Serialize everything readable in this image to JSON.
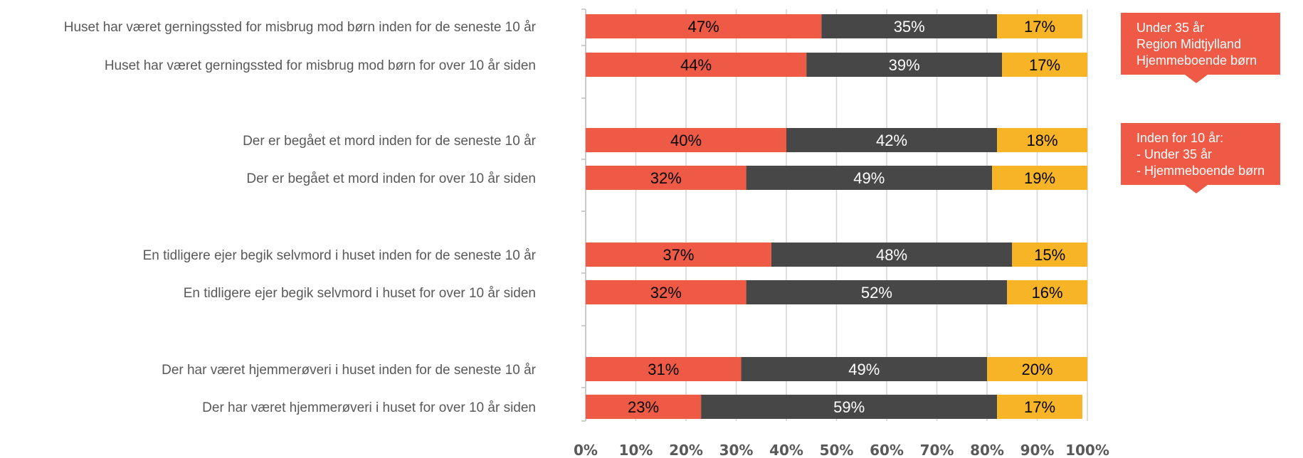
{
  "chart_data": {
    "type": "bar",
    "orientation": "horizontal",
    "stacked": "percent",
    "categories": [
      "Huset har været gerningssted for misbrug mod børn inden for de seneste 10 år",
      "Huset har været gerningssted for misbrug mod børn for over 10 år siden",
      "Der er begået et mord inden for de seneste 10 år",
      "Der er begået et mord inden for over 10 år siden",
      "En tidligere ejer begik selvmord i huset inden for de seneste 10 år",
      "En tidligere ejer begik selvmord i huset for over 10 år siden",
      "Der har været hjemmerøveri i huset inden for de seneste 10 år",
      "Der har været hjemmerøveri i huset for over 10 år siden"
    ],
    "groups": [
      [
        0,
        1
      ],
      [
        2,
        3
      ],
      [
        4,
        5
      ],
      [
        6,
        7
      ]
    ],
    "series": [
      {
        "color": "#ee5a45",
        "label_color": "#000000",
        "values": [
          47,
          44,
          40,
          32,
          37,
          32,
          31,
          23
        ]
      },
      {
        "color": "#474747",
        "label_color": "#ffffff",
        "values": [
          35,
          39,
          42,
          49,
          48,
          52,
          49,
          59
        ]
      },
      {
        "color": "#f8b427",
        "label_color": "#000000",
        "values": [
          17,
          17,
          18,
          19,
          15,
          16,
          20,
          17
        ]
      }
    ],
    "data_labels": [
      [
        "47%",
        "35%",
        "17%"
      ],
      [
        "44%",
        "39%",
        "17%"
      ],
      [
        "40%",
        "42%",
        "18%"
      ],
      [
        "32%",
        "49%",
        "19%"
      ],
      [
        "37%",
        "48%",
        "15%"
      ],
      [
        "32%",
        "52%",
        "16%"
      ],
      [
        "31%",
        "49%",
        "20%"
      ],
      [
        "23%",
        "59%",
        "17%"
      ]
    ],
    "x_ticks": [
      "0%",
      "10%",
      "20%",
      "30%",
      "40%",
      "50%",
      "60%",
      "70%",
      "80%",
      "90%",
      "100%"
    ],
    "xlim": [
      0,
      100
    ],
    "grid": true,
    "legend": null
  },
  "callouts": [
    {
      "lines": [
        "Under 35 år",
        "Region Midtjylland",
        "Hjemmeboende børn"
      ]
    },
    {
      "lines": [
        "Inden for 10 år:",
        "- Under 35 år",
        "- Hjemmeboende børn"
      ]
    }
  ]
}
